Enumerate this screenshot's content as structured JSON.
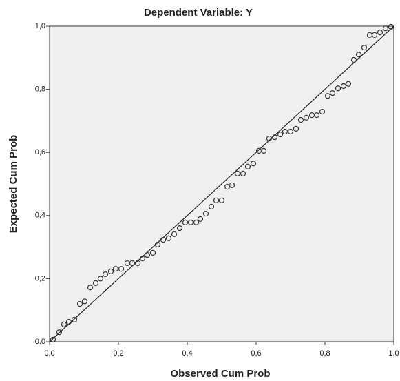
{
  "chart_data": {
    "type": "scatter",
    "title": "Dependent Variable: Y",
    "x_label": "Observed Cum Prob",
    "y_label": "Expected Cum Prob",
    "color": "#333333",
    "reference_line": true,
    "xlim": [
      0,
      1
    ],
    "ylim": [
      0,
      1
    ],
    "xticks": [
      {
        "value": 0,
        "label": "0,0"
      },
      {
        "value": 0.2,
        "label": "0,2"
      },
      {
        "value": 0.4,
        "label": "0,4"
      },
      {
        "value": 0.6,
        "label": "0,6"
      },
      {
        "value": 0.8,
        "label": "0,8"
      },
      {
        "value": 1,
        "label": "1,0"
      }
    ],
    "yticks": [
      {
        "value": 0,
        "label": "0,0"
      },
      {
        "value": 0.2,
        "label": "0,2"
      },
      {
        "value": 0.4,
        "label": "0,4"
      },
      {
        "value": 0.6,
        "label": "0,6"
      },
      {
        "value": 0.8,
        "label": "0,8"
      },
      {
        "value": 1,
        "label": "1,0"
      }
    ],
    "x": [
      0.01,
      0.028,
      0.042,
      0.056,
      0.072,
      0.088,
      0.102,
      0.118,
      0.134,
      0.148,
      0.162,
      0.178,
      0.192,
      0.208,
      0.226,
      0.24,
      0.256,
      0.27,
      0.284,
      0.3,
      0.314,
      0.33,
      0.346,
      0.362,
      0.378,
      0.394,
      0.41,
      0.426,
      0.438,
      0.454,
      0.47,
      0.484,
      0.5,
      0.516,
      0.53,
      0.546,
      0.562,
      0.576,
      0.592,
      0.608,
      0.622,
      0.638,
      0.654,
      0.67,
      0.684,
      0.7,
      0.716,
      0.73,
      0.746,
      0.762,
      0.776,
      0.792,
      0.808,
      0.822,
      0.838,
      0.854,
      0.868,
      0.884,
      0.898,
      0.914,
      0.93,
      0.944,
      0.96,
      0.976,
      0.992
    ],
    "values": [
      0.007,
      0.03,
      0.055,
      0.063,
      0.07,
      0.12,
      0.128,
      0.172,
      0.186,
      0.2,
      0.214,
      0.223,
      0.231,
      0.231,
      0.249,
      0.249,
      0.249,
      0.264,
      0.275,
      0.282,
      0.308,
      0.323,
      0.328,
      0.341,
      0.36,
      0.378,
      0.378,
      0.378,
      0.389,
      0.406,
      0.428,
      0.448,
      0.448,
      0.491,
      0.496,
      0.533,
      0.533,
      0.555,
      0.565,
      0.605,
      0.605,
      0.644,
      0.648,
      0.657,
      0.666,
      0.666,
      0.675,
      0.703,
      0.71,
      0.718,
      0.718,
      0.729,
      0.779,
      0.788,
      0.803,
      0.81,
      0.817,
      0.893,
      0.91,
      0.932,
      0.972,
      0.972,
      0.98,
      0.993,
      0.998
    ]
  }
}
